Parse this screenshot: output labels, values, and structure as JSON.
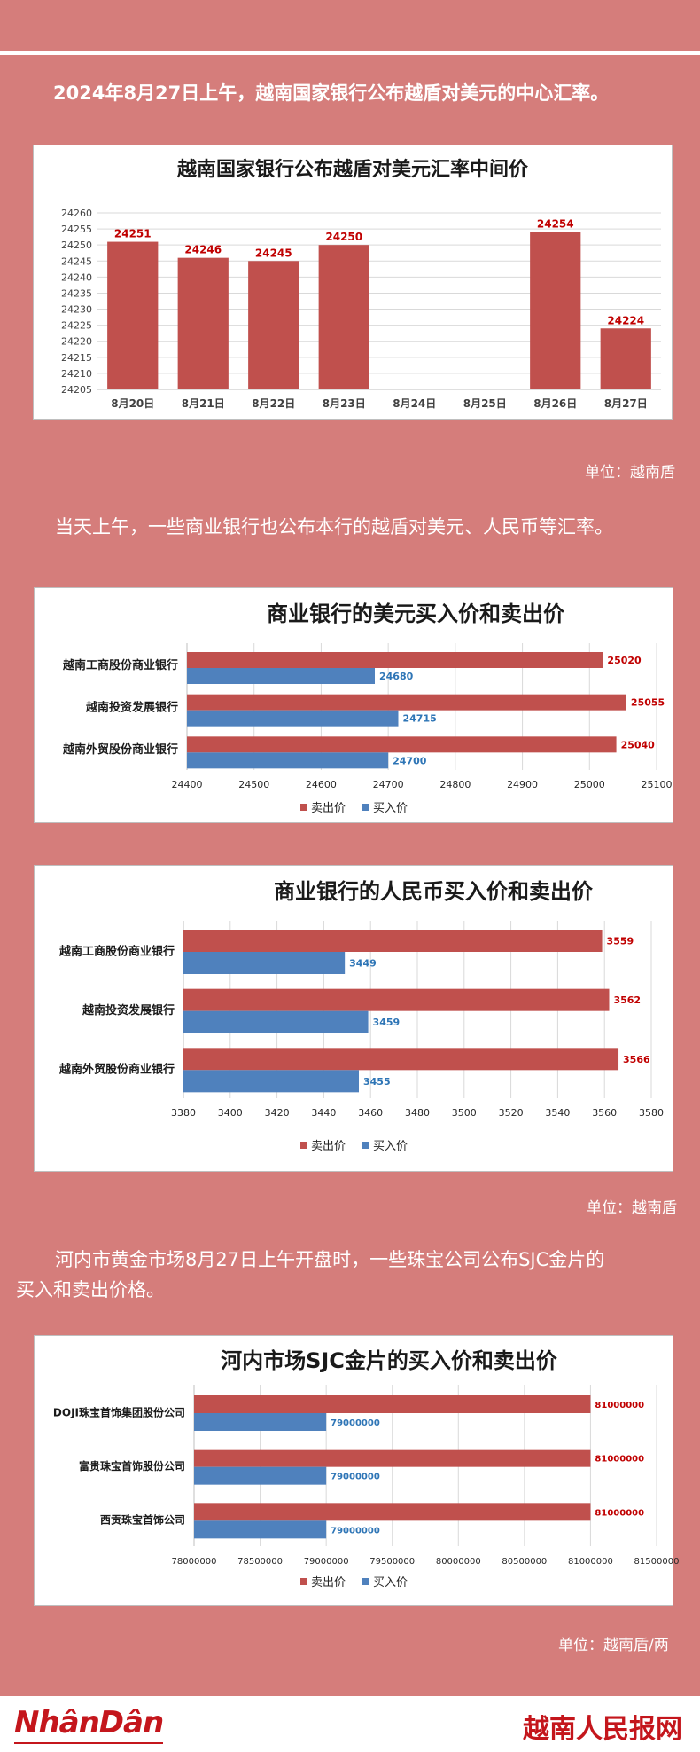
{
  "intro_text": "2024年8月27日上午，越南国家银行公布越盾对美元的中心汇率。",
  "para2_text": "当天上午，一些商业银行也公布本行的越盾对美元、人民币等汇率。",
  "para3_line1": "河内市黄金市场8月27日上午开盘时，一些珠宝公司公布SJC金片的",
  "para3_line2": "买入和卖出价格。",
  "unit1": "单位：越南盾",
  "unit2": "单位：越南盾",
  "unit3": "单位：越南盾/两",
  "footer": {
    "logo_left": "NhânDân",
    "logo_right": "越南人民报网"
  },
  "colors": {
    "background": "#d57d7b",
    "sell": "#c0504d",
    "buy": "#4f81bd",
    "sell_label": "#c00000",
    "buy_label": "#2e75b6"
  },
  "chart_data": [
    {
      "type": "bar",
      "title": "越南国家银行公布越盾对美元汇率中间价",
      "categories": [
        "8月20日",
        "8月21日",
        "8月22日",
        "8月23日",
        "8月24日",
        "8月25日",
        "8月26日",
        "8月27日"
      ],
      "values": [
        24251,
        24246,
        24245,
        24250,
        null,
        null,
        24254,
        24224
      ],
      "ylim": [
        24205,
        24260
      ],
      "yticks": [
        24205,
        24210,
        24215,
        24220,
        24225,
        24230,
        24235,
        24240,
        24245,
        24250,
        24255,
        24260
      ],
      "grid": true
    },
    {
      "type": "bar",
      "orientation": "horizontal",
      "title": "商业银行的美元买入价和卖出价",
      "categories": [
        "越南工商股份商业银行",
        "越南投资发展银行",
        "越南外贸股份商业银行"
      ],
      "series": [
        {
          "name": "卖出价",
          "values": [
            25020,
            25055,
            25040
          ]
        },
        {
          "name": "买入价",
          "values": [
            24680,
            24715,
            24700
          ]
        }
      ],
      "xlim": [
        24400,
        25100
      ],
      "xticks": [
        24400,
        24500,
        24600,
        24700,
        24800,
        24900,
        25000,
        25100
      ],
      "legend": "bottom",
      "grid": true
    },
    {
      "type": "bar",
      "orientation": "horizontal",
      "title": "商业银行的人民币买入价和卖出价",
      "categories": [
        "越南工商股份商业银行",
        "越南投资发展银行",
        "越南外贸股份商业银行"
      ],
      "series": [
        {
          "name": "卖出价",
          "values": [
            3559,
            3562,
            3566
          ]
        },
        {
          "name": "买入价",
          "values": [
            3449,
            3459,
            3455
          ]
        }
      ],
      "xlim": [
        3380,
        3580
      ],
      "xticks": [
        3380,
        3400,
        3420,
        3440,
        3460,
        3480,
        3500,
        3520,
        3540,
        3560,
        3580
      ],
      "legend": "bottom",
      "grid": true
    },
    {
      "type": "bar",
      "orientation": "horizontal",
      "title": "河内市场SJC金片的买入价和卖出价",
      "categories": [
        "DOJI珠宝首饰集团股份公司",
        "富贵珠宝首饰股份公司",
        "西贡珠宝首饰公司"
      ],
      "series": [
        {
          "name": "卖出价",
          "values": [
            81000000,
            81000000,
            81000000
          ]
        },
        {
          "name": "买入价",
          "values": [
            79000000,
            79000000,
            79000000
          ]
        }
      ],
      "xlim": [
        78000000,
        81500000
      ],
      "xticks": [
        78000000,
        78500000,
        79000000,
        79500000,
        80000000,
        80500000,
        81000000,
        81500000
      ],
      "legend": "bottom",
      "grid": true
    }
  ]
}
